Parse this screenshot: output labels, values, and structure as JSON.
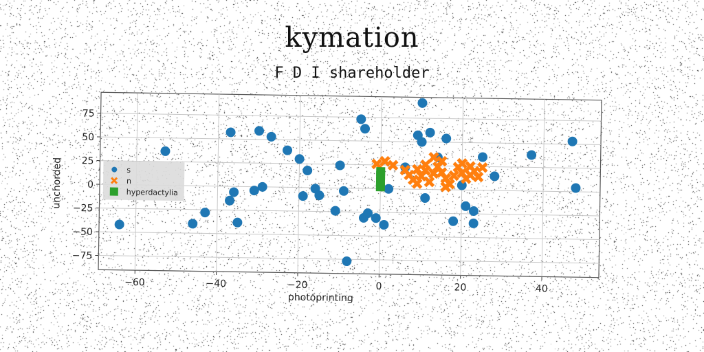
{
  "title": "kymation",
  "subtitle": "F D I shareholder",
  "colors": {
    "s": "#1f77b4",
    "n": "#ff7f0e",
    "hyperdactylia": "#2ca02c"
  },
  "chart_data": {
    "type": "scatter",
    "xlabel": "photoprinting",
    "ylabel": "unchorded",
    "xlim": [
      -69,
      54
    ],
    "ylim": [
      -90,
      97
    ],
    "xticks": [
      -60,
      -40,
      -20,
      0,
      20,
      40
    ],
    "yticks": [
      -75,
      -50,
      -25,
      0,
      25,
      50,
      75
    ],
    "xtick_labels": [
      "−60",
      "−40",
      "−20",
      "0",
      "20",
      "40"
    ],
    "ytick_labels": [
      "−75",
      "−50",
      "−25",
      "0",
      "25",
      "50",
      "75"
    ],
    "grid": true,
    "legend_position": "center-left",
    "series": [
      {
        "name": "s",
        "marker": "circle",
        "points": [
          [
            -64,
            -42
          ],
          [
            -53,
            36
          ],
          [
            -46,
            -40
          ],
          [
            -43,
            -28
          ],
          [
            -37,
            57
          ],
          [
            -37,
            -15
          ],
          [
            -36,
            -6
          ],
          [
            -35,
            -38
          ],
          [
            -30,
            59
          ],
          [
            -31,
            -4
          ],
          [
            -29,
            0
          ],
          [
            -27,
            53
          ],
          [
            -23,
            39
          ],
          [
            -20,
            30
          ],
          [
            -19,
            -9
          ],
          [
            -18,
            18
          ],
          [
            -16,
            -1
          ],
          [
            -15,
            -8
          ],
          [
            -11,
            -24
          ],
          [
            -10,
            24
          ],
          [
            -9,
            -3
          ],
          [
            -8,
            -77
          ],
          [
            -5,
            73
          ],
          [
            -4,
            63
          ],
          [
            -4,
            -31
          ],
          [
            -3,
            -26
          ],
          [
            -1,
            -31
          ],
          [
            1,
            -38
          ],
          [
            2,
            0
          ],
          [
            6,
            23
          ],
          [
            9,
            57
          ],
          [
            10,
            91
          ],
          [
            10,
            50
          ],
          [
            11,
            -9
          ],
          [
            12,
            60
          ],
          [
            14,
            34
          ],
          [
            16,
            54
          ],
          [
            18,
            -33
          ],
          [
            20,
            5
          ],
          [
            21,
            -17
          ],
          [
            23,
            -22
          ],
          [
            23,
            -35
          ],
          [
            25,
            35
          ],
          [
            28,
            15
          ],
          [
            37,
            38
          ],
          [
            47,
            53
          ],
          [
            48,
            4
          ]
        ]
      },
      {
        "name": "n",
        "marker": "x",
        "points": [
          [
            -1,
            26
          ],
          [
            1,
            29
          ],
          [
            3,
            25
          ],
          [
            6,
            20
          ],
          [
            7,
            15
          ],
          [
            8,
            10
          ],
          [
            9,
            6
          ],
          [
            10,
            14
          ],
          [
            11,
            20
          ],
          [
            12,
            8
          ],
          [
            13,
            17
          ],
          [
            14,
            24
          ],
          [
            15,
            18
          ],
          [
            16,
            12
          ],
          [
            17,
            6
          ],
          [
            11,
            26
          ],
          [
            13,
            34
          ],
          [
            15,
            30
          ],
          [
            9,
            21
          ],
          [
            19,
            24
          ],
          [
            20,
            18
          ],
          [
            21,
            12
          ],
          [
            22,
            25
          ],
          [
            23,
            20
          ],
          [
            24,
            14
          ],
          [
            25,
            24
          ],
          [
            20,
            28
          ],
          [
            22,
            16
          ],
          [
            16,
            3
          ],
          [
            18,
            15
          ]
        ]
      },
      {
        "name": "hyperdactylia",
        "marker": "square",
        "points": [
          [
            0,
            2
          ],
          [
            0,
            8
          ],
          [
            0,
            14
          ],
          [
            0,
            18
          ]
        ]
      }
    ]
  }
}
